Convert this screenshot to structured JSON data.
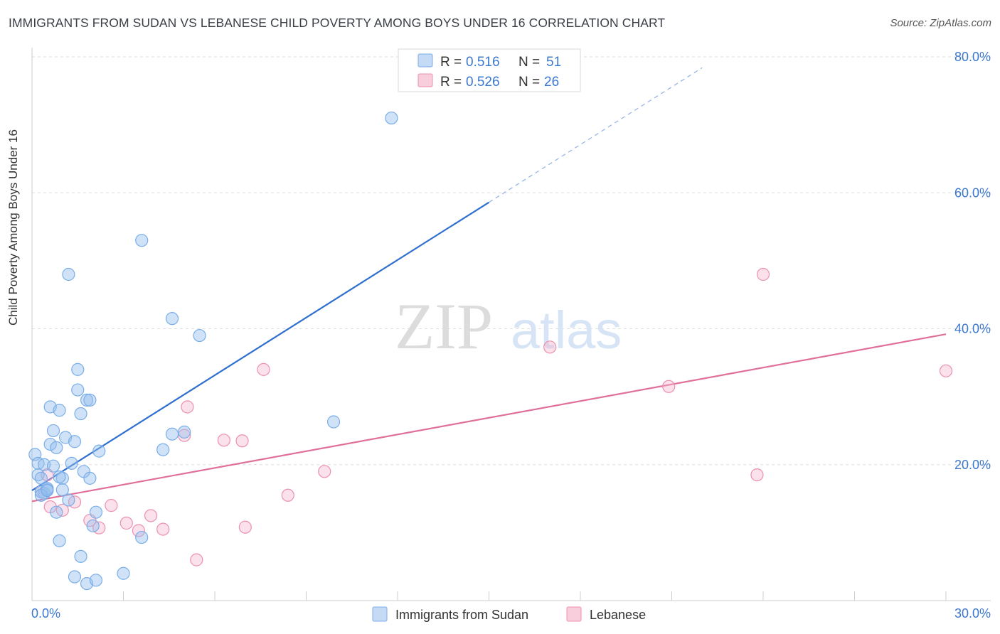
{
  "header": {
    "title": "IMMIGRANTS FROM SUDAN VS LEBANESE CHILD POVERTY AMONG BOYS UNDER 16 CORRELATION CHART",
    "source": "Source: ZipAtlas.com"
  },
  "watermark": {
    "zip": "ZIP",
    "atlas": "atlas"
  },
  "legend": {
    "r_label": "R =",
    "n_label": "N =",
    "items": [
      {
        "name": "Immigrants from Sudan",
        "r": "0.516",
        "n": "51",
        "color": "#7aaee8",
        "fill": "#c5daf5"
      },
      {
        "name": "Lebanese",
        "r": "0.526",
        "n": "26",
        "color": "#ec90b0",
        "fill": "#f8cddc"
      }
    ]
  },
  "chart_data": {
    "type": "scatter",
    "title": "IMMIGRANTS FROM SUDAN VS LEBANESE CHILD POVERTY AMONG BOYS UNDER 16 CORRELATION CHART",
    "xlabel": "",
    "ylabel": "Child Poverty Among Boys Under 16",
    "xlim": [
      0,
      30
    ],
    "ylim": [
      0,
      80
    ],
    "x_tick_labels": [
      "0.0%",
      "30.0%"
    ],
    "y_ticks": [
      20,
      40,
      60,
      80
    ],
    "y_tick_labels": [
      "20.0%",
      "40.0%",
      "60.0%",
      "80.0%"
    ],
    "grid": true,
    "series": [
      {
        "name": "Immigrants from Sudan",
        "color": "#4a86d6",
        "points": [
          [
            0.1,
            21.5
          ],
          [
            0.2,
            20.2
          ],
          [
            0.2,
            18.5
          ],
          [
            0.3,
            18.0
          ],
          [
            0.3,
            16.0
          ],
          [
            0.4,
            15.8
          ],
          [
            0.4,
            20.0
          ],
          [
            0.5,
            16.3
          ],
          [
            0.5,
            16.5
          ],
          [
            0.6,
            28.5
          ],
          [
            0.6,
            23.0
          ],
          [
            0.7,
            19.8
          ],
          [
            0.7,
            25.0
          ],
          [
            0.8,
            22.5
          ],
          [
            0.8,
            13.0
          ],
          [
            0.9,
            28.0
          ],
          [
            0.9,
            8.8
          ],
          [
            1.0,
            18.0
          ],
          [
            1.0,
            16.3
          ],
          [
            1.1,
            24.0
          ],
          [
            1.2,
            48.0
          ],
          [
            1.2,
            14.8
          ],
          [
            1.3,
            20.2
          ],
          [
            1.4,
            23.4
          ],
          [
            1.4,
            3.5
          ],
          [
            1.5,
            31.0
          ],
          [
            1.5,
            34.0
          ],
          [
            1.6,
            27.5
          ],
          [
            1.6,
            6.5
          ],
          [
            1.7,
            19.0
          ],
          [
            1.8,
            2.5
          ],
          [
            1.8,
            29.5
          ],
          [
            1.9,
            29.5
          ],
          [
            1.9,
            18.0
          ],
          [
            2.0,
            11.0
          ],
          [
            2.1,
            3.0
          ],
          [
            2.1,
            13.0
          ],
          [
            2.2,
            22.0
          ],
          [
            3.0,
            4.0
          ],
          [
            3.6,
            9.3
          ],
          [
            3.6,
            53.0
          ],
          [
            4.3,
            22.2
          ],
          [
            4.6,
            41.5
          ],
          [
            4.6,
            24.5
          ],
          [
            5.0,
            24.8
          ],
          [
            5.5,
            39.0
          ],
          [
            9.9,
            26.3
          ],
          [
            11.8,
            71.0
          ],
          [
            0.3,
            15.5
          ],
          [
            0.5,
            16.2
          ],
          [
            0.9,
            18.2
          ]
        ],
        "trend": {
          "x0": 0.0,
          "y0": 16.2,
          "x1": 15.0,
          "y1": 58.6,
          "extend_to_x": 22.0,
          "extend_to_y": 78.4
        }
      },
      {
        "name": "Lebanese",
        "color": "#e06a96",
        "points": [
          [
            0.3,
            16.0
          ],
          [
            0.5,
            18.5
          ],
          [
            0.6,
            13.8
          ],
          [
            1.0,
            13.3
          ],
          [
            1.4,
            14.5
          ],
          [
            1.9,
            11.8
          ],
          [
            2.2,
            10.7
          ],
          [
            2.6,
            14.0
          ],
          [
            3.1,
            11.4
          ],
          [
            3.5,
            10.3
          ],
          [
            3.9,
            12.5
          ],
          [
            4.3,
            10.5
          ],
          [
            5.0,
            24.3
          ],
          [
            5.1,
            28.5
          ],
          [
            5.4,
            6.0
          ],
          [
            6.3,
            23.6
          ],
          [
            6.9,
            23.5
          ],
          [
            7.0,
            10.8
          ],
          [
            7.6,
            34.0
          ],
          [
            8.4,
            15.5
          ],
          [
            9.6,
            19.0
          ],
          [
            17.0,
            37.3
          ],
          [
            20.9,
            31.5
          ],
          [
            23.8,
            18.5
          ],
          [
            24.0,
            48.0
          ],
          [
            30.0,
            33.8
          ]
        ],
        "trend": {
          "x0": 0.0,
          "y0": 14.6,
          "x1": 30.0,
          "y1": 39.2
        }
      }
    ]
  }
}
